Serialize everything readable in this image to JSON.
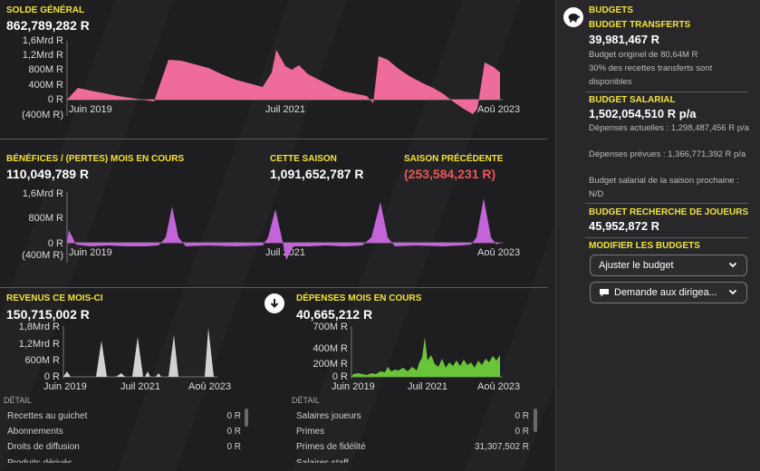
{
  "colors": {
    "accent": "#f2e13c",
    "pink": "#ef6b9c",
    "purple": "#c364d8",
    "gray": "#d2d2d2",
    "green": "#6ac43a",
    "negative": "#ee5555"
  },
  "balance": {
    "label": "SOLDE GÉNÉRAL",
    "value": "862,789,282 R",
    "yticks": [
      "1,6Mrd R",
      "1,2Mrd R",
      "800M R",
      "400M R",
      "0 R",
      "(400M R)"
    ],
    "xticks": [
      "Juin 2019",
      "Juil 2021",
      "Aoû 2023"
    ]
  },
  "profit": {
    "label": "BÉNÉFICES / (PERTES) MOIS EN COURS",
    "value": "110,049,789 R",
    "this_season_label": "CETTE SAISON",
    "this_season_value": "1,091,652,787 R",
    "prev_season_label": "SAISON PRÉCÉDENTE",
    "prev_season_value": "(253,584,231 R)",
    "yticks": [
      "1,6Mrd R",
      "800M R",
      "0 R",
      "(400M R)"
    ],
    "xticks": [
      "Juin 2019",
      "Juil 2021",
      "Aoû 2023"
    ]
  },
  "revenue": {
    "label": "REVENUS CE MOIS-CI",
    "value": "150,715,002 R",
    "yticks": [
      "1,8Mrd R",
      "1,2Mrd R",
      "600M R",
      "0 R"
    ],
    "xticks": [
      "Juin 2019",
      "Juil 2021",
      "Aoû 2023"
    ],
    "detail_header": "DÉTAIL",
    "rows": [
      {
        "label": "Recettes au guichet",
        "value": "0 R"
      },
      {
        "label": "Abonnements",
        "value": "0 R"
      },
      {
        "label": "Droits de diffusion",
        "value": "0 R"
      },
      {
        "label": "Produits dérivés",
        "value": ""
      }
    ]
  },
  "expenses": {
    "label": "DÉPENSES MOIS EN COURS",
    "value": "40,665,212 R",
    "yticks": [
      "700M R",
      "400M R",
      "200M R",
      "0 R"
    ],
    "xticks": [
      "Juin 2019",
      "Juil 2021",
      "Aoû 2023"
    ],
    "detail_header": "DÉTAIL",
    "rows": [
      {
        "label": "Salaires joueurs",
        "value": "0 R"
      },
      {
        "label": "Primes",
        "value": "0 R"
      },
      {
        "label": "Primes de fidélité",
        "value": "31,307,502 R"
      },
      {
        "label": "Salaires staff",
        "value": ""
      }
    ]
  },
  "budgets": {
    "title": "BUDGETS",
    "transfer_label": "BUDGET TRANSFERTS",
    "transfer_value": "39,981,467 R",
    "transfer_note1": "Budget originel de 80,64M R",
    "transfer_note2": "30% des recettes transferts sont disponibles",
    "wage_label": "BUDGET SALARIAL",
    "wage_value": "1,502,054,510 R p/a",
    "wage_current": "Dépenses actuelles : 1,298,487,456 R p/a",
    "wage_planned": "Dépenses prévues : 1,366,771,392 R p/a",
    "wage_next": "Budget salarial de la saison prochaine : N/D",
    "scout_label": "BUDGET RECHERCHE DE JOUEURS",
    "scout_value": "45,952,872 R",
    "modify_label": "MODIFIER LES BUDGETS",
    "adjust_button": "Ajuster le budget",
    "request_button": "Demande aux dirigea..."
  }
}
